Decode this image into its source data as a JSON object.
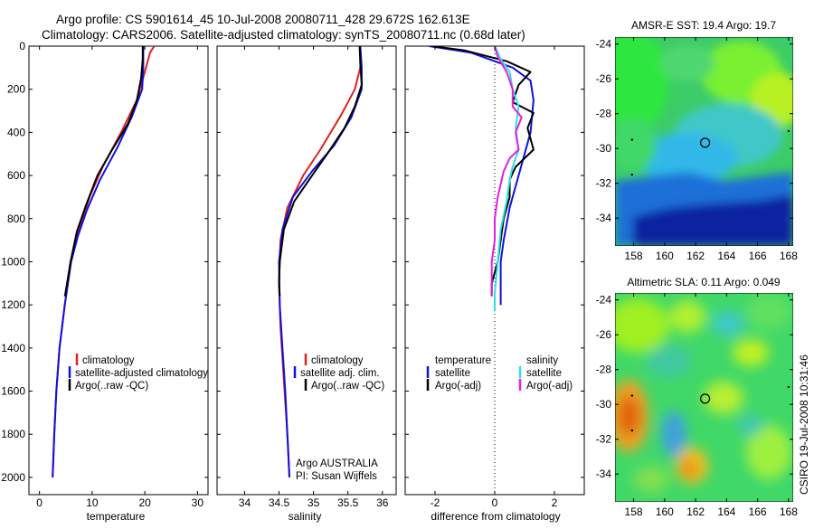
{
  "title_line1": "Argo profile: CS 5901614_45 10-Jul-2008 20080711_428 29.672S 162.613E",
  "title_line2": "Climatology: CARS2006. Satellite-adjusted climatology: synTS_20080711.nc (0.68d later)",
  "side_stamp": "CSIRO 19-Jul-2008 10:31:46",
  "colors": {
    "clim": "#e02020",
    "sat": "#1010e0",
    "argo": "#000000",
    "cyan": "#30e0e0",
    "magenta": "#e020e0"
  },
  "chart_data": [
    {
      "id": "temperature",
      "type": "line",
      "xlabel": "temperature",
      "xlim": [
        -2,
        32
      ],
      "ylim": [
        0,
        2080
      ],
      "xticks": [
        0,
        10,
        20,
        30
      ],
      "yticks": [
        0,
        200,
        400,
        600,
        800,
        1000,
        1200,
        1400,
        1600,
        1800,
        2000
      ],
      "legend": [
        "climatology",
        "satellite-adjusted climatology",
        "Argo(..raw -QC)"
      ],
      "series": [
        {
          "name": "climatology",
          "color": "clim",
          "points": [
            [
              21.8,
              0
            ],
            [
              21,
              30
            ],
            [
              20,
              120
            ],
            [
              18.5,
              250
            ],
            [
              15.5,
              400
            ],
            [
              12,
              560
            ],
            [
              9.5,
              700
            ],
            [
              7.5,
              850
            ],
            [
              6,
              1000
            ],
            [
              4.8,
              1200
            ],
            [
              3.8,
              1400
            ],
            [
              3.2,
              1600
            ],
            [
              2.8,
              1800
            ],
            [
              2.5,
              2000
            ]
          ]
        },
        {
          "name": "satellite-adjusted climatology",
          "color": "sat",
          "points": [
            [
              19.7,
              0
            ],
            [
              19.7,
              100
            ],
            [
              19.5,
              200
            ],
            [
              17.5,
              330
            ],
            [
              14.8,
              470
            ],
            [
              11.5,
              620
            ],
            [
              9,
              760
            ],
            [
              7.3,
              880
            ],
            [
              6,
              1000
            ],
            [
              4.8,
              1200
            ],
            [
              3.8,
              1400
            ],
            [
              3.2,
              1600
            ],
            [
              2.8,
              1800
            ],
            [
              2.5,
              2000
            ]
          ]
        },
        {
          "name": "Argo(..raw -QC)",
          "color": "argo",
          "points": [
            [
              19.6,
              0
            ],
            [
              19.6,
              60
            ],
            [
              19.3,
              150
            ],
            [
              18.5,
              250
            ],
            [
              16.8,
              360
            ],
            [
              13.8,
              480
            ],
            [
              11,
              600
            ],
            [
              8.8,
              740
            ],
            [
              7.1,
              860
            ],
            [
              5.9,
              1000
            ],
            [
              4.9,
              1150
            ],
            [
              4.8,
              1160
            ]
          ]
        }
      ]
    },
    {
      "id": "salinity",
      "type": "line",
      "xlabel": "salinity",
      "xlim": [
        33.6,
        36.2
      ],
      "ylim": [
        0,
        2080
      ],
      "xticks": [
        34,
        34.5,
        35,
        35.5,
        36
      ],
      "legend": [
        "climatology",
        "satellite adj. clim.",
        "Argo(..raw -QC)"
      ],
      "annotation": [
        "Argo AUSTRALIA",
        "PI: Susan Wijffels"
      ],
      "series": [
        {
          "name": "climatology",
          "color": "clim",
          "points": [
            [
              35.68,
              0
            ],
            [
              35.68,
              100
            ],
            [
              35.6,
              200
            ],
            [
              35.4,
              320
            ],
            [
              35.1,
              480
            ],
            [
              34.85,
              600
            ],
            [
              34.62,
              750
            ],
            [
              34.52,
              900
            ],
            [
              34.5,
              1100
            ],
            [
              34.52,
              1300
            ],
            [
              34.56,
              1500
            ],
            [
              34.6,
              1700
            ],
            [
              34.63,
              1850
            ],
            [
              34.65,
              2000
            ]
          ]
        },
        {
          "name": "satellite adj. clim.",
          "color": "sat",
          "points": [
            [
              35.68,
              0
            ],
            [
              35.7,
              100
            ],
            [
              35.7,
              200
            ],
            [
              35.55,
              330
            ],
            [
              35.3,
              460
            ],
            [
              34.98,
              580
            ],
            [
              34.7,
              700
            ],
            [
              34.55,
              850
            ],
            [
              34.5,
              1000
            ],
            [
              34.51,
              1200
            ],
            [
              34.55,
              1400
            ],
            [
              34.59,
              1600
            ],
            [
              34.62,
              1800
            ],
            [
              34.65,
              2000
            ]
          ]
        },
        {
          "name": "Argo(..raw -QC)",
          "color": "argo",
          "points": [
            [
              35.67,
              0
            ],
            [
              35.68,
              80
            ],
            [
              35.7,
              180
            ],
            [
              35.6,
              280
            ],
            [
              35.45,
              380
            ],
            [
              35.2,
              500
            ],
            [
              34.98,
              600
            ],
            [
              34.72,
              720
            ],
            [
              34.57,
              850
            ],
            [
              34.51,
              1000
            ],
            [
              34.5,
              1100
            ],
            [
              34.51,
              1160
            ]
          ]
        }
      ]
    },
    {
      "id": "difference",
      "type": "line",
      "xlabel": "difference from climatology",
      "xlim": [
        -3,
        3
      ],
      "ylim": [
        0,
        2080
      ],
      "xticks": [
        -2,
        0,
        2
      ],
      "legend_temperature": {
        "header": "temperature",
        "items": [
          "satellite",
          "Argo(-adj)"
        ]
      },
      "legend_salinity": {
        "header": "salinity",
        "items": [
          "satellite",
          "Argo(-adj)"
        ]
      },
      "series": [
        {
          "name": "temperature satellite",
          "color": "sat",
          "points": [
            [
              -2.2,
              0
            ],
            [
              -0.8,
              30
            ],
            [
              0.6,
              100
            ],
            [
              1.2,
              160
            ],
            [
              1.3,
              250
            ],
            [
              1.2,
              400
            ],
            [
              1,
              500
            ],
            [
              0.8,
              600
            ],
            [
              0.5,
              750
            ],
            [
              0.3,
              900
            ],
            [
              0.2,
              1000
            ],
            [
              0.2,
              1200
            ]
          ]
        },
        {
          "name": "temperature Argo(-adj)",
          "color": "argo",
          "points": [
            [
              -2.1,
              0
            ],
            [
              -1,
              20
            ],
            [
              0.4,
              70
            ],
            [
              1.2,
              120
            ],
            [
              0.8,
              180
            ],
            [
              0.6,
              260
            ],
            [
              1.3,
              310
            ],
            [
              1.1,
              380
            ],
            [
              1.3,
              480
            ],
            [
              0.7,
              560
            ],
            [
              0.5,
              620
            ],
            [
              0.5,
              700
            ],
            [
              0.3,
              800
            ],
            [
              0.2,
              900
            ],
            [
              0.1,
              1000
            ],
            [
              -0.1,
              1100
            ],
            [
              -0.1,
              1160
            ]
          ]
        },
        {
          "name": "salinity satellite",
          "color": "cyan",
          "points": [
            [
              0,
              0
            ],
            [
              0.2,
              60
            ],
            [
              0.5,
              120
            ],
            [
              0.6,
              200
            ],
            [
              0.8,
              280
            ],
            [
              0.7,
              380
            ],
            [
              0.8,
              480
            ],
            [
              0.6,
              560
            ],
            [
              0.5,
              620
            ],
            [
              0.4,
              720
            ],
            [
              0.2,
              850
            ],
            [
              0.1,
              1000
            ],
            [
              0,
              1150
            ],
            [
              0,
              1230
            ]
          ]
        },
        {
          "name": "salinity Argo(-adj)",
          "color": "magenta",
          "points": [
            [
              0,
              0
            ],
            [
              0.1,
              50
            ],
            [
              0.4,
              120
            ],
            [
              0.6,
              200
            ],
            [
              0.6,
              280
            ],
            [
              0.9,
              330
            ],
            [
              0.7,
              400
            ],
            [
              0.8,
              480
            ],
            [
              0.5,
              520
            ],
            [
              0.3,
              580
            ],
            [
              0.2,
              640
            ],
            [
              0.1,
              700
            ],
            [
              0,
              800
            ],
            [
              0,
              900
            ],
            [
              -0.1,
              1000
            ],
            [
              -0.1,
              1100
            ],
            [
              -0.1,
              1160
            ]
          ]
        }
      ]
    },
    {
      "id": "sst_map",
      "type": "heatmap",
      "title": "AMSR-E SST: 19.4 Argo: 19.7",
      "xticks": [
        158,
        160,
        162,
        164,
        166,
        168
      ],
      "yticks": [
        -24,
        -26,
        -28,
        -30,
        -32,
        -34
      ],
      "marker": [
        162.613,
        -29.672
      ]
    },
    {
      "id": "sla_map",
      "type": "heatmap",
      "title": "Altimetric SLA: 0.11 Argo: 0.049",
      "xticks": [
        158,
        160,
        162,
        164,
        166,
        168
      ],
      "yticks": [
        -24,
        -26,
        -28,
        -30,
        -32,
        -34
      ],
      "marker": [
        162.613,
        -29.672
      ]
    }
  ]
}
